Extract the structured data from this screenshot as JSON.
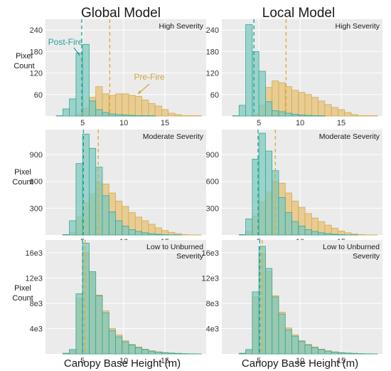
{
  "column_titles": [
    "Global Model",
    "Local Model"
  ],
  "y_axis_label": [
    "Pixel",
    "Count"
  ],
  "x_axis_label": "Canopy Base Height (m)",
  "annotations": {
    "post": "Post-Fire",
    "pre": "Pre-Fire"
  },
  "colors": {
    "pre_fill": "#e8c98a",
    "pre_stroke": "#d2a94f",
    "post_fill": "#7cc7bd",
    "post_stroke": "#35a89b",
    "panel_bg": "#ebebeb",
    "grid": "#ffffff",
    "pre_line": "#e0aa3a",
    "post_line": "#2aa198"
  },
  "chart_data": [
    {
      "type": "histogram",
      "model": "Global Model",
      "title": "High Severity",
      "x_edges_start": 1,
      "bin_width": 0.8,
      "xlim": [
        0.5,
        20
      ],
      "x_ticks": [
        5,
        10,
        15
      ],
      "ylim": [
        0,
        270
      ],
      "y_ticks": [
        60,
        120,
        180,
        240
      ],
      "y_tick_labels": [
        "60",
        "120",
        "180",
        "240"
      ],
      "pre_mean": 8.3,
      "post_mean": 4.9,
      "series": [
        {
          "name": "Post-Fire",
          "values": [
            0,
            1,
            20,
            48,
            175,
            200,
            42,
            18,
            10,
            6,
            4,
            3,
            2,
            1,
            1,
            1,
            0,
            0,
            0,
            0,
            0,
            0,
            0
          ]
        },
        {
          "name": "Pre-Fire",
          "values": [
            0,
            0,
            0,
            0,
            6,
            22,
            52,
            82,
            62,
            58,
            62,
            62,
            58,
            55,
            45,
            35,
            28,
            18,
            8,
            4,
            1,
            1,
            1
          ]
        }
      ]
    },
    {
      "type": "histogram",
      "model": "Local Model",
      "title": "High Severity",
      "x_edges_start": 1,
      "bin_width": 0.8,
      "xlim": [
        0.5,
        20
      ],
      "x_ticks": [
        5,
        10,
        15
      ],
      "ylim": [
        0,
        270
      ],
      "y_ticks": [
        60,
        120,
        180,
        240
      ],
      "y_tick_labels": [
        "60",
        "120",
        "180",
        "240"
      ],
      "pre_mean": 8.3,
      "post_mean": 4.4,
      "series": [
        {
          "name": "Post-Fire",
          "values": [
            0,
            1,
            30,
            255,
            180,
            125,
            40,
            15,
            12,
            8,
            5,
            3,
            2,
            1,
            1,
            0,
            0,
            0,
            0,
            0,
            0,
            0,
            0
          ]
        },
        {
          "name": "Pre-Fire",
          "values": [
            0,
            0,
            0,
            0,
            5,
            30,
            80,
            98,
            93,
            82,
            72,
            66,
            60,
            52,
            42,
            32,
            24,
            18,
            10,
            4,
            1,
            1,
            1
          ]
        }
      ]
    },
    {
      "type": "histogram",
      "model": "Global Model",
      "title": "Moderate Severity",
      "x_edges_start": 1,
      "bin_width": 0.8,
      "xlim": [
        0.5,
        20
      ],
      "x_ticks": [
        5,
        10,
        15
      ],
      "ylim": [
        0,
        1180
      ],
      "y_ticks": [
        300,
        600,
        900
      ],
      "y_tick_labels": [
        "300",
        "600",
        "900"
      ],
      "pre_mean": 6.9,
      "post_mean": 5.1,
      "series": [
        {
          "name": "Post-Fire",
          "values": [
            0,
            0,
            5,
            160,
            800,
            1130,
            970,
            760,
            440,
            260,
            160,
            100,
            60,
            40,
            25,
            15,
            8,
            4,
            2,
            1,
            0,
            0,
            0
          ]
        },
        {
          "name": "Pre-Fire",
          "values": [
            0,
            0,
            5,
            30,
            200,
            360,
            460,
            590,
            570,
            470,
            380,
            320,
            250,
            200,
            160,
            120,
            80,
            50,
            30,
            15,
            5,
            2,
            1
          ]
        }
      ]
    },
    {
      "type": "histogram",
      "model": "Local Model",
      "title": "Moderate Severity",
      "x_edges_start": 1,
      "bin_width": 0.8,
      "xlim": [
        0.5,
        20
      ],
      "x_ticks": [
        5,
        10,
        15
      ],
      "ylim": [
        0,
        1180
      ],
      "y_ticks": [
        300,
        600,
        900
      ],
      "y_tick_labels": [
        "300",
        "600",
        "900"
      ],
      "pre_mean": 7.0,
      "post_mean": 4.9,
      "series": [
        {
          "name": "Post-Fire",
          "values": [
            0,
            0,
            5,
            180,
            850,
            1140,
            940,
            720,
            420,
            250,
            150,
            100,
            60,
            40,
            25,
            15,
            8,
            4,
            2,
            1,
            0,
            0,
            0
          ]
        },
        {
          "name": "Pre-Fire",
          "values": [
            0,
            0,
            5,
            40,
            210,
            370,
            480,
            600,
            580,
            470,
            380,
            310,
            240,
            190,
            150,
            110,
            75,
            45,
            25,
            12,
            5,
            2,
            1
          ]
        }
      ]
    },
    {
      "type": "histogram",
      "model": "Global Model",
      "title": "Low to Unburned Severity",
      "x_edges_start": 1,
      "bin_width": 0.8,
      "xlim": [
        0.5,
        20
      ],
      "x_ticks": [
        5,
        10,
        15
      ],
      "ylim": [
        0,
        18000
      ],
      "y_ticks": [
        4000,
        8000,
        12000,
        16000
      ],
      "y_tick_labels": [
        "4e3",
        "8e3",
        "12e3",
        "16e3"
      ],
      "pre_mean": 5.3,
      "post_mean": 5.0,
      "series": [
        {
          "name": "Post-Fire",
          "values": [
            0,
            0,
            100,
            700,
            9500,
            17500,
            13000,
            9200,
            6500,
            3700,
            2700,
            1900,
            1400,
            1000,
            700,
            450,
            300,
            200,
            120,
            80,
            40,
            20,
            10
          ]
        },
        {
          "name": "Pre-Fire",
          "values": [
            0,
            0,
            80,
            500,
            8800,
            16000,
            12800,
            9300,
            6800,
            4000,
            3000,
            2100,
            1500,
            1100,
            750,
            500,
            330,
            220,
            140,
            90,
            50,
            25,
            12
          ]
        }
      ]
    },
    {
      "type": "histogram",
      "model": "Local Model",
      "title": "Low to Unburned Severity",
      "x_edges_start": 1,
      "bin_width": 0.8,
      "xlim": [
        0.5,
        20
      ],
      "x_ticks": [
        5,
        10,
        15
      ],
      "ylim": [
        0,
        18000
      ],
      "y_ticks": [
        4000,
        8000,
        12000,
        16000
      ],
      "y_tick_labels": [
        "4e3",
        "8e3",
        "12e3",
        "16e3"
      ],
      "pre_mean": 5.4,
      "post_mean": 5.1,
      "series": [
        {
          "name": "Post-Fire",
          "values": [
            0,
            0,
            100,
            700,
            9800,
            17000,
            13500,
            9000,
            6300,
            3800,
            2800,
            2000,
            1400,
            1000,
            700,
            450,
            300,
            200,
            120,
            80,
            40,
            20,
            10
          ]
        },
        {
          "name": "Pre-Fire",
          "values": [
            0,
            0,
            80,
            500,
            9000,
            15800,
            13000,
            9200,
            6600,
            4100,
            3000,
            2100,
            1500,
            1100,
            750,
            500,
            330,
            220,
            140,
            90,
            50,
            25,
            12
          ]
        }
      ]
    }
  ]
}
